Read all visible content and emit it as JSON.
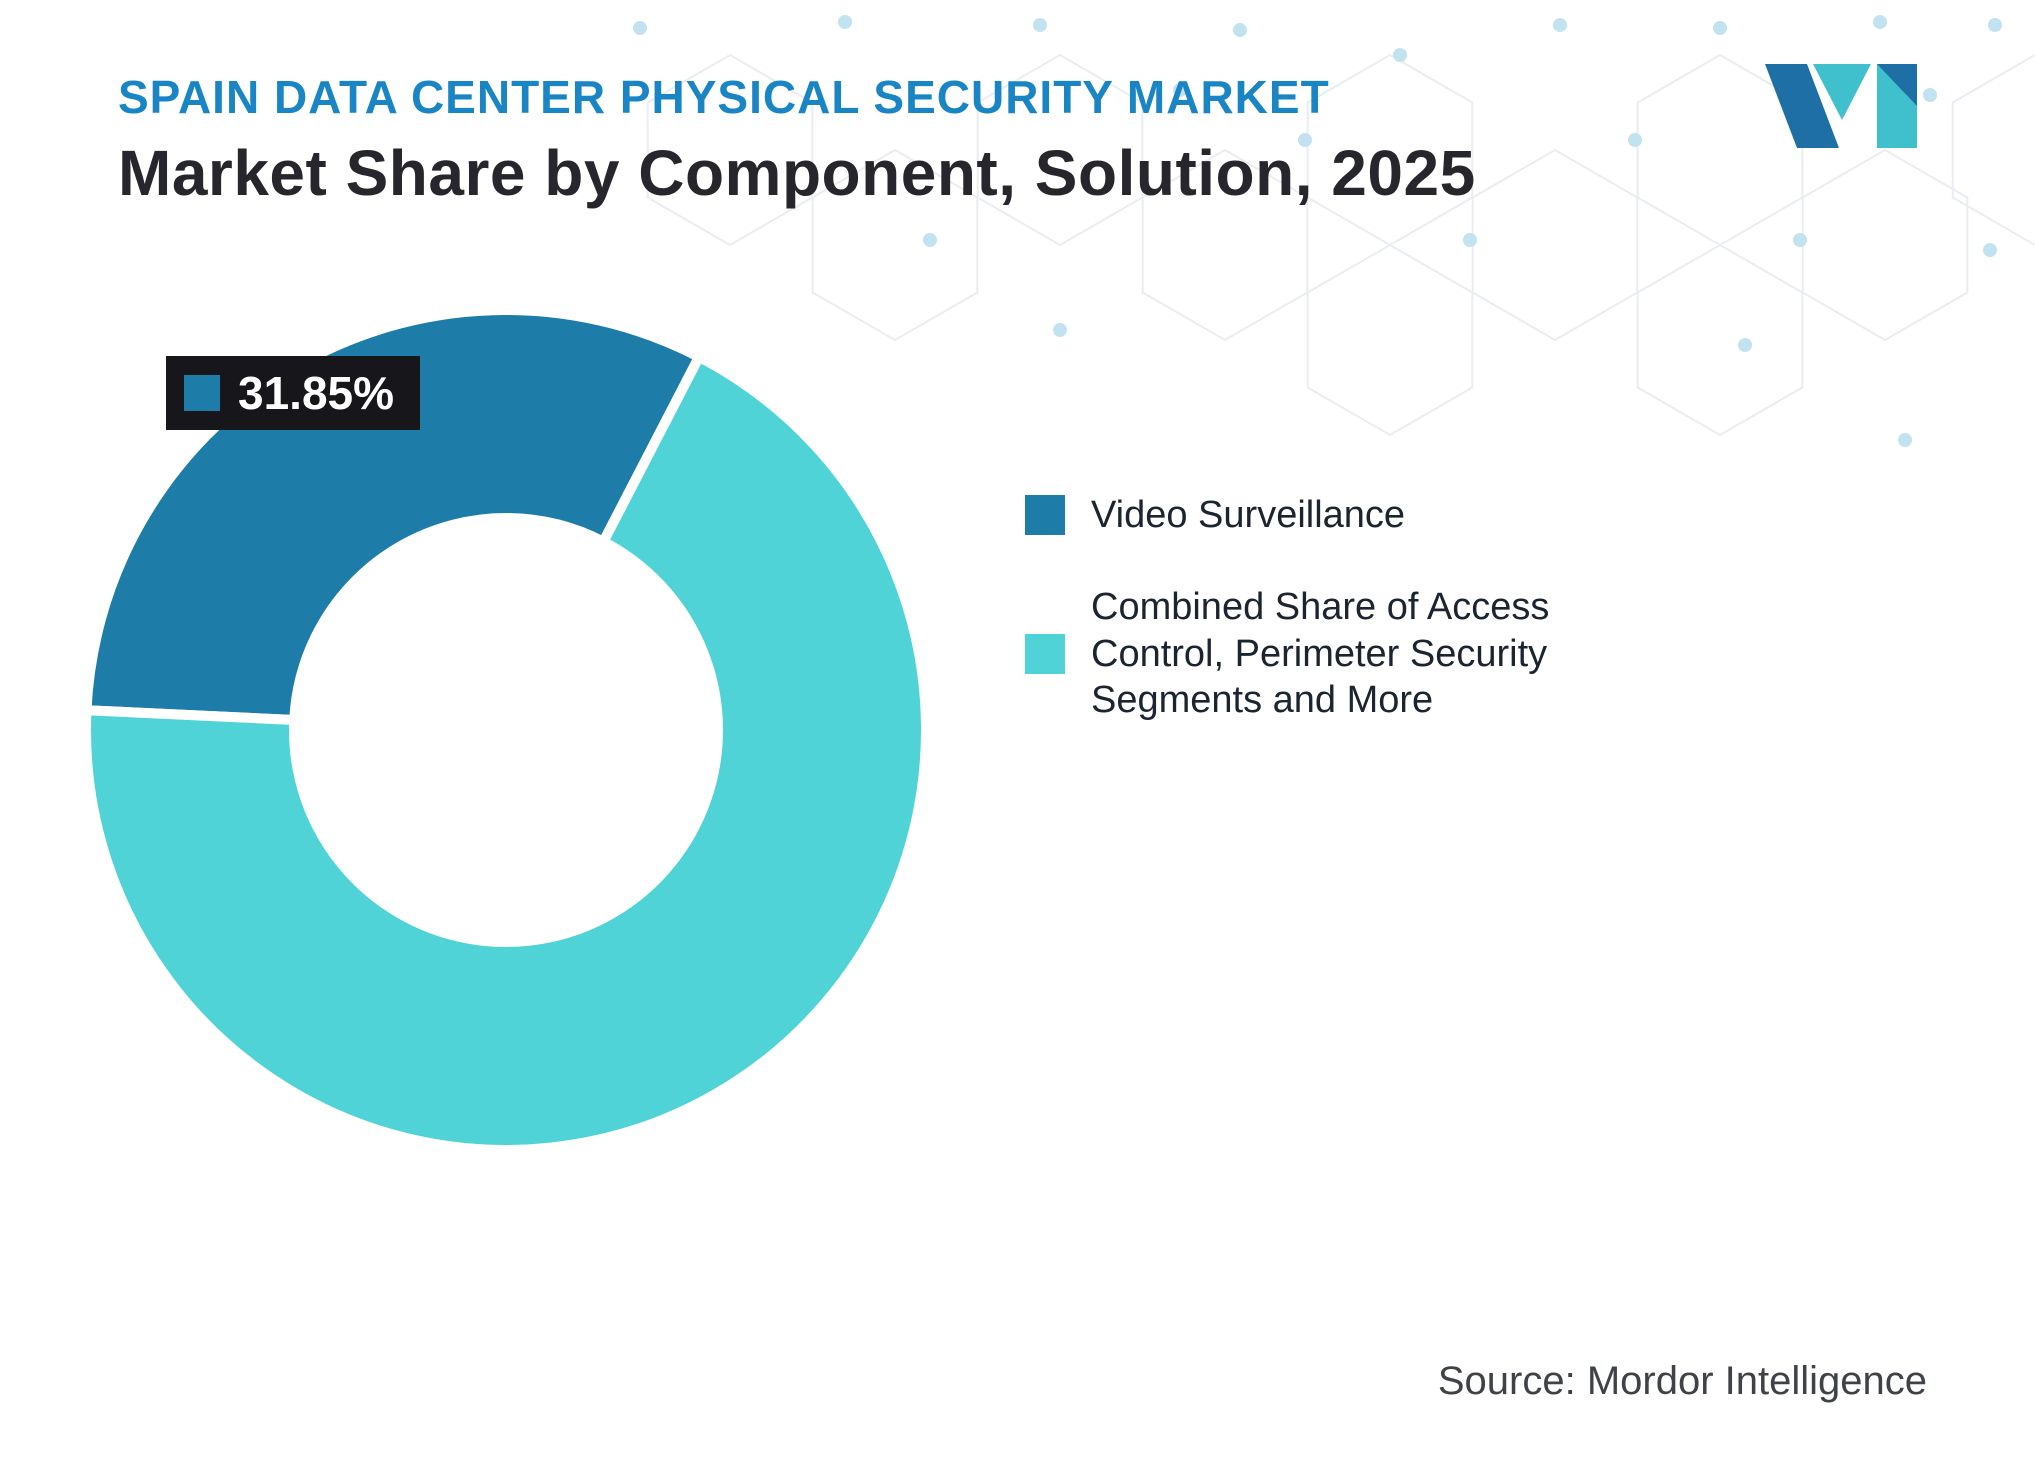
{
  "header": {
    "eyebrow": "SPAIN DATA CENTER PHYSICAL SECURITY MARKET",
    "title": "Market Share by Component, Solution, 2025"
  },
  "chart_data": {
    "type": "pie",
    "donut": true,
    "title": "Market Share by Component, Solution, 2025",
    "start_angle_deg": -87.3,
    "legend_position": "right",
    "series": [
      {
        "label": "Video Surveillance",
        "value": 31.85,
        "color": "#1e7ca8"
      },
      {
        "label": "Combined Share of Access Control, Perimeter Security Segments and More",
        "value": 68.15,
        "color": "#4fd3d6"
      }
    ],
    "data_label": {
      "text": "31.85%",
      "series": "Video Surveillance"
    }
  },
  "source": {
    "text": "Source: Mordor Intelligence"
  },
  "colors": {
    "eyebrow_blue": "#1a85c5",
    "title_dark": "#26262c",
    "badge_bg": "#16161b",
    "dot_blue": "#c2e2ef",
    "hex_line": "#e9edf1"
  }
}
